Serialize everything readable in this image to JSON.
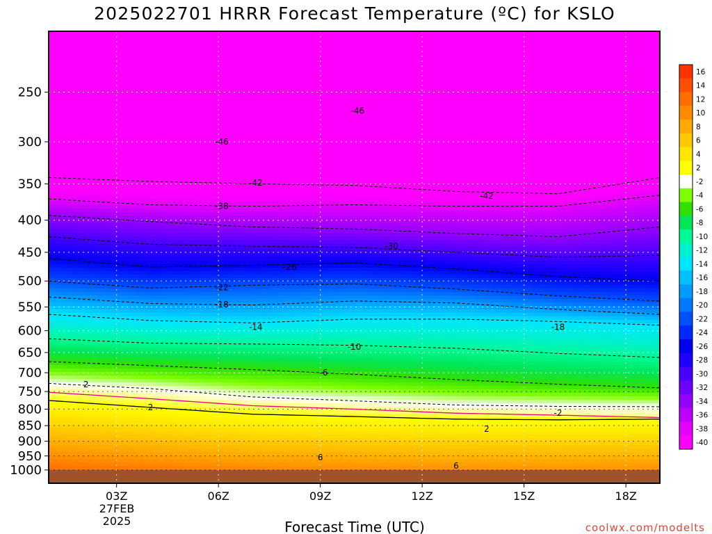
{
  "chart_data": {
    "type": "heatmap",
    "title": "2025022701 HRRR Forecast Temperature (ºC) for KSLO",
    "xlabel": "Forecast Time (UTC)",
    "ylabel": "",
    "credit": "coolwx.com/modelts",
    "x_range_hours": [
      1,
      19
    ],
    "x_ticks": [
      {
        "hour": 3,
        "label": "03Z"
      },
      {
        "hour": 6,
        "label": "06Z"
      },
      {
        "hour": 9,
        "label": "09Z"
      },
      {
        "hour": 12,
        "label": "12Z"
      },
      {
        "hour": 15,
        "label": "15Z"
      },
      {
        "hour": 18,
        "label": "18Z"
      }
    ],
    "x_date_lines": [
      "27FEB",
      "2025"
    ],
    "y_axis_scale": "log-pressure",
    "y_range_hpa": [
      200,
      1050
    ],
    "y_ticks": [
      250,
      300,
      350,
      400,
      450,
      500,
      550,
      600,
      650,
      700,
      750,
      800,
      850,
      900,
      950,
      1000
    ],
    "grid": true,
    "colorbar": {
      "placement": "right",
      "labels": [
        "16",
        "14",
        "12",
        "10",
        "8",
        "6",
        "4",
        "2",
        "-2",
        "-4",
        "-6",
        "-8",
        "-10",
        "-12",
        "-14",
        "-16",
        "-18",
        "-20",
        "-22",
        "-24",
        "-26",
        "-28",
        "-30",
        "-32",
        "-34",
        "-36",
        "-38",
        "-40"
      ],
      "colors": [
        "#ff3200",
        "#ff5000",
        "#ff6e00",
        "#ff8c00",
        "#ffaa00",
        "#ffc800",
        "#ffe600",
        "#ffff00",
        "#ffffff",
        "#80ff00",
        "#2fe000",
        "#00e65a",
        "#00fa96",
        "#00f0d2",
        "#00e6ff",
        "#00c0ff",
        "#009cff",
        "#0078ff",
        "#0050ff",
        "#0028ff",
        "#0000f0",
        "#1e00ff",
        "#4600ff",
        "#6e00ff",
        "#9600ff",
        "#be00ff",
        "#e600ff",
        "#ff00ff"
      ]
    },
    "temperature_profile_hours": [
      1,
      4,
      7,
      10,
      13,
      16,
      19
    ],
    "isotherms": [
      {
        "label": "2",
        "color": "#000000",
        "dash": false,
        "p": [
          775,
          795,
          815,
          822,
          830,
          832,
          830
        ]
      },
      {
        "label": "0",
        "color": "#e6007e",
        "dash": false,
        "p": [
          752,
          770,
          790,
          800,
          812,
          818,
          825
        ]
      },
      {
        "label": "-2",
        "color": "#000000",
        "dash": true,
        "p": [
          728,
          742,
          765,
          776,
          788,
          792,
          793
        ]
      },
      {
        "label": "-6",
        "color": "#000000",
        "dash": true,
        "p": [
          672,
          682,
          692,
          704,
          718,
          730,
          740
        ]
      },
      {
        "label": "-10",
        "color": "#000000",
        "dash": true,
        "p": [
          618,
          628,
          630,
          633,
          640,
          652,
          662
        ]
      },
      {
        "label": "-14",
        "color": "#000000",
        "dash": true,
        "p": [
          565,
          578,
          583,
          575,
          575,
          580,
          588
        ]
      },
      {
        "label": "-18",
        "color": "#000000",
        "dash": true,
        "p": [
          530,
          543,
          546,
          538,
          542,
          555,
          565
        ]
      },
      {
        "label": "-22",
        "color": "#000000",
        "dash": true,
        "p": [
          500,
          513,
          508,
          505,
          515,
          528,
          538
        ]
      },
      {
        "label": "-26",
        "color": "#000000",
        "dash": true,
        "p": [
          460,
          475,
          472,
          468,
          478,
          492,
          500
        ]
      },
      {
        "label": "-30",
        "color": "#000000",
        "dash": true,
        "p": [
          425,
          437,
          440,
          442,
          450,
          458,
          455
        ]
      },
      {
        "label": "-34",
        "color": "#000000",
        "dash": true,
        "p": [
          393,
          402,
          410,
          413,
          420,
          425,
          410
        ]
      },
      {
        "label": "-38",
        "color": "#000000",
        "dash": true,
        "p": [
          370,
          378,
          380,
          378,
          380,
          380,
          365
        ]
      },
      {
        "label": "-42",
        "color": "#000000",
        "dash": true,
        "p": [
          342,
          347,
          350,
          352,
          360,
          363,
          342
        ]
      }
    ],
    "contour_labels": [
      {
        "text": "-46",
        "hour": 10.1,
        "p": 268
      },
      {
        "text": "-46",
        "hour": 6.1,
        "p": 300
      },
      {
        "text": "-42",
        "hour": 7.1,
        "p": 349
      },
      {
        "text": "-42",
        "hour": 13.9,
        "p": 366
      },
      {
        "text": "-38",
        "hour": 6.1,
        "p": 380
      },
      {
        "text": "-30",
        "hour": 11.1,
        "p": 440
      },
      {
        "text": "-26",
        "hour": 8.1,
        "p": 475
      },
      {
        "text": "-22",
        "hour": 6.1,
        "p": 512
      },
      {
        "text": "-18",
        "hour": 6.1,
        "p": 545
      },
      {
        "text": "-18",
        "hour": 16.0,
        "p": 592
      },
      {
        "text": "-14",
        "hour": 7.1,
        "p": 592
      },
      {
        "text": "-10",
        "hour": 10.0,
        "p": 637
      },
      {
        "text": "-6",
        "hour": 9.1,
        "p": 700
      },
      {
        "text": "-2",
        "hour": 16.0,
        "p": 812
      },
      {
        "text": "2",
        "hour": 2.1,
        "p": 731
      },
      {
        "text": "2",
        "hour": 4.0,
        "p": 795
      },
      {
        "text": "2",
        "hour": 13.9,
        "p": 860
      },
      {
        "text": "6",
        "hour": 9.0,
        "p": 955
      },
      {
        "text": "6",
        "hour": 13.0,
        "p": 985
      }
    ],
    "below_ground_hpa": 1000
  }
}
